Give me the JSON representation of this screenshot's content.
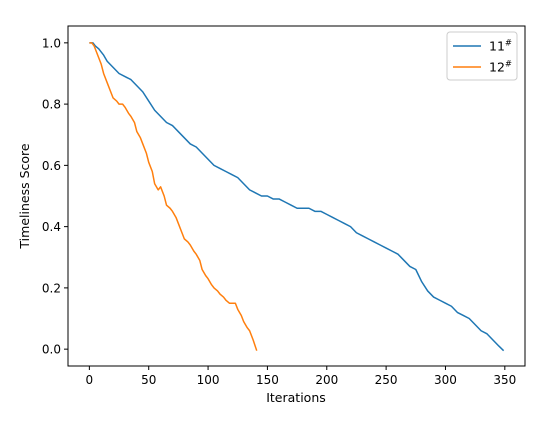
{
  "chart_data": {
    "type": "line",
    "title": "",
    "xlabel": "Iterations",
    "ylabel": "Timeliness Score",
    "xlim": [
      -18,
      367
    ],
    "ylim": [
      -0.055,
      1.055
    ],
    "xticks": [
      0,
      50,
      100,
      150,
      200,
      250,
      300,
      350
    ],
    "yticks": [
      0.0,
      0.2,
      0.4,
      0.6,
      0.8,
      1.0
    ],
    "grid": false,
    "legend": "top-right",
    "series": [
      {
        "name": "11",
        "name_sup": "#",
        "color": "#1f77b4",
        "x": [
          0,
          3,
          5,
          8,
          10,
          12,
          15,
          20,
          25,
          30,
          35,
          40,
          45,
          50,
          55,
          60,
          65,
          70,
          75,
          80,
          85,
          90,
          95,
          100,
          105,
          110,
          115,
          120,
          125,
          130,
          135,
          140,
          145,
          150,
          155,
          160,
          165,
          170,
          175,
          180,
          185,
          190,
          195,
          200,
          205,
          210,
          215,
          220,
          225,
          230,
          235,
          240,
          245,
          250,
          255,
          260,
          265,
          270,
          275,
          280,
          285,
          290,
          295,
          300,
          305,
          310,
          315,
          320,
          325,
          330,
          335,
          340,
          345,
          349
        ],
        "values": [
          1.0,
          1.0,
          0.99,
          0.98,
          0.97,
          0.96,
          0.94,
          0.92,
          0.9,
          0.89,
          0.88,
          0.86,
          0.84,
          0.81,
          0.78,
          0.76,
          0.74,
          0.73,
          0.71,
          0.69,
          0.67,
          0.66,
          0.64,
          0.62,
          0.6,
          0.59,
          0.58,
          0.57,
          0.56,
          0.54,
          0.52,
          0.51,
          0.5,
          0.5,
          0.49,
          0.49,
          0.48,
          0.47,
          0.46,
          0.46,
          0.46,
          0.45,
          0.45,
          0.44,
          0.43,
          0.42,
          0.41,
          0.4,
          0.38,
          0.37,
          0.36,
          0.35,
          0.34,
          0.33,
          0.32,
          0.31,
          0.29,
          0.27,
          0.26,
          0.22,
          0.19,
          0.17,
          0.16,
          0.15,
          0.14,
          0.12,
          0.11,
          0.1,
          0.08,
          0.06,
          0.05,
          0.03,
          0.01,
          -0.005
        ]
      },
      {
        "name": "12",
        "name_sup": "#",
        "color": "#ff7f0e",
        "x": [
          0,
          2,
          4,
          6,
          8,
          10,
          12,
          15,
          18,
          20,
          23,
          25,
          28,
          30,
          33,
          35,
          38,
          40,
          43,
          45,
          48,
          50,
          53,
          55,
          58,
          60,
          63,
          65,
          68,
          70,
          73,
          75,
          78,
          80,
          83,
          85,
          88,
          90,
          93,
          95,
          98,
          100,
          103,
          105,
          108,
          110,
          113,
          115,
          118,
          120,
          123,
          125,
          128,
          130,
          133,
          135,
          138,
          141
        ],
        "values": [
          1.0,
          1.0,
          0.99,
          0.97,
          0.95,
          0.93,
          0.9,
          0.87,
          0.84,
          0.82,
          0.81,
          0.8,
          0.8,
          0.79,
          0.77,
          0.76,
          0.74,
          0.71,
          0.69,
          0.67,
          0.64,
          0.61,
          0.58,
          0.54,
          0.52,
          0.53,
          0.5,
          0.47,
          0.46,
          0.45,
          0.43,
          0.41,
          0.38,
          0.36,
          0.35,
          0.34,
          0.32,
          0.31,
          0.29,
          0.26,
          0.24,
          0.23,
          0.21,
          0.2,
          0.19,
          0.18,
          0.17,
          0.16,
          0.15,
          0.15,
          0.15,
          0.13,
          0.11,
          0.09,
          0.07,
          0.06,
          0.03,
          -0.005
        ]
      }
    ]
  }
}
